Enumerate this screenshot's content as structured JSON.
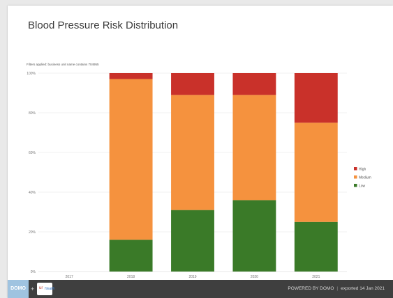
{
  "title": "Blood Pressure Risk Distribution",
  "filter_text": "Filters applied: business unit name contains 704955",
  "chart_data": {
    "type": "bar",
    "stacked": true,
    "categories": [
      "2017",
      "2018",
      "2019",
      "2020",
      "2021"
    ],
    "series": [
      {
        "name": "Low",
        "color": "#3a7a28",
        "values": [
          0,
          16,
          31,
          36,
          25
        ]
      },
      {
        "name": "Medium",
        "color": "#f5923e",
        "values": [
          0,
          81,
          58,
          53,
          50
        ]
      },
      {
        "name": "High",
        "color": "#c9312a",
        "values": [
          0,
          3,
          11,
          11,
          25
        ]
      }
    ],
    "y_ticks": [
      "0%",
      "20%",
      "40%",
      "60%",
      "80%",
      "100%"
    ],
    "ylim": [
      0,
      100
    ],
    "legend_position": "right",
    "legend_order": [
      "High",
      "Medium",
      "Low"
    ],
    "grid": true
  },
  "footer": {
    "logo_text": "DOMO",
    "plus": "+",
    "partner_logo_text": "ur",
    "partner_logo_sub": "Health",
    "powered_by": "POWERED BY DOMO",
    "separator": "|",
    "exported": "exported 14 Jan 2021"
  }
}
